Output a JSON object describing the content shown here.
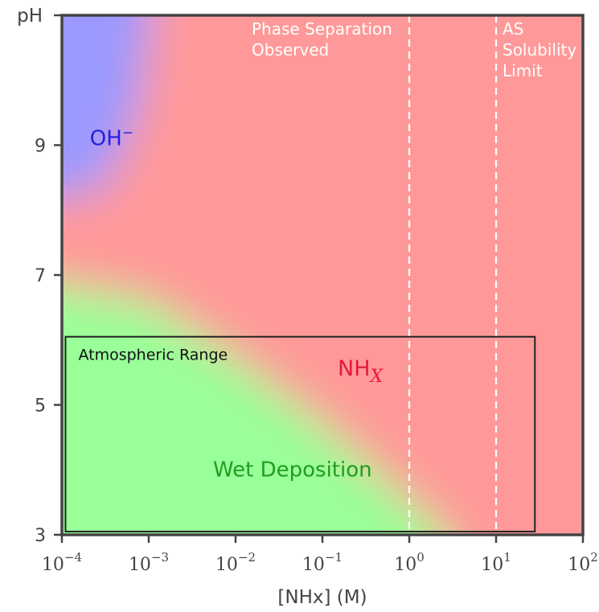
{
  "chart_data": {
    "type": "heatmap",
    "xlabel": "[NHx] (M)",
    "ylabel": "pH",
    "x_scale": "log",
    "xlim": [
      0.0001,
      100
    ],
    "ylim": [
      3,
      11
    ],
    "x_ticks": [
      {
        "value": 0.0001,
        "mantissa": "10",
        "exp": "−4"
      },
      {
        "value": 0.001,
        "mantissa": "10",
        "exp": "−3"
      },
      {
        "value": 0.01,
        "mantissa": "10",
        "exp": "−2"
      },
      {
        "value": 0.1,
        "mantissa": "10",
        "exp": "−1"
      },
      {
        "value": 1,
        "mantissa": "10",
        "exp": "0"
      },
      {
        "value": 10,
        "mantissa": "10",
        "exp": "1"
      },
      {
        "value": 100,
        "mantissa": "10",
        "exp": "2"
      }
    ],
    "y_ticks": [
      {
        "value": 3,
        "label": "3"
      },
      {
        "value": 5,
        "label": "5"
      },
      {
        "value": 7,
        "label": "7"
      },
      {
        "value": 9,
        "label": "9"
      }
    ],
    "regions": [
      {
        "name": "OH",
        "superscript": "−",
        "color": "#9999ff",
        "label_x": 0.00021,
        "label_y": 9.0
      },
      {
        "name": "NH",
        "subscript": "X",
        "color": "#ff9999",
        "label_x": 0.15,
        "label_y": 5.45
      },
      {
        "name": "Wet Deposition",
        "color": "#99ff99",
        "label_x": 0.0055,
        "label_y": 3.9
      }
    ],
    "label_colors": {
      "OH": "#2222dd",
      "NH": "#e6193c",
      "Wet Deposition": "#1f9e1f"
    },
    "reference_lines": [
      {
        "x": 1,
        "label_lines": [
          "Phase Separation",
          "Observed"
        ],
        "style": "dashed",
        "color": "#ffffff"
      },
      {
        "x": 10,
        "label_lines": [
          "AS",
          "Solubility",
          "Limit"
        ],
        "style": "dashed",
        "color": "#ffffff"
      }
    ],
    "boxes": [
      {
        "label": "Atmospheric Range",
        "x0": 0.00011,
        "x1": 28,
        "y0": 3.05,
        "y1": 6.05,
        "color": "#222222"
      }
    ],
    "grid": false,
    "legend": "none"
  }
}
